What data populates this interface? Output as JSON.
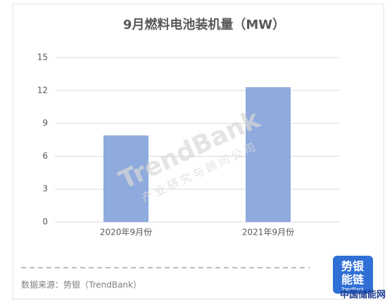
{
  "chart_data": {
    "type": "bar",
    "title": "9月燃料电池装机量（MW）",
    "categories": [
      "2020年9月份",
      "2021年9月份"
    ],
    "values": [
      7.9,
      12.3
    ],
    "color": "#8faadc",
    "ylim": [
      0,
      15
    ],
    "yticks": [
      0,
      3,
      6,
      9,
      12,
      15
    ],
    "grid": true,
    "source": "数据来源：势银（TrendBank）",
    "watermark": {
      "brand": "TrendBank",
      "tagline": "产业研究与顾问公司"
    },
    "logo": {
      "line1": "势银",
      "line2": "能链",
      "sub": "TrendBank"
    },
    "site": "中国储能网"
  }
}
